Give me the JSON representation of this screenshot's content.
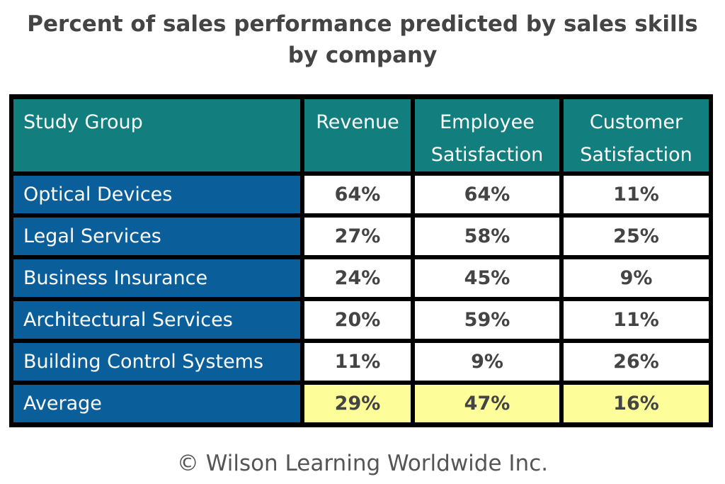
{
  "title_line1": "Percent of sales performance predicted by sales skills",
  "title_line2": "by company",
  "colors": {
    "header": "#137e7e",
    "group": "#0a5f9a",
    "average": "#fdfd9a",
    "border": "#000000"
  },
  "chart_data": {
    "type": "table",
    "columns": [
      "Study Group",
      "Revenue",
      "Employee Satisfaction",
      "Customer Satisfaction"
    ],
    "rows": [
      [
        "Optical Devices",
        "64%",
        "64%",
        "11%"
      ],
      [
        "Legal Services",
        "27%",
        "58%",
        "25%"
      ],
      [
        "Business Insurance",
        "24%",
        "45%",
        "9%"
      ],
      [
        "Architectural Services",
        "20%",
        "59%",
        "11%"
      ],
      [
        "Building Control Systems",
        "11%",
        "9%",
        "26%"
      ],
      [
        "Average",
        "29%",
        "47%",
        "16%"
      ]
    ]
  },
  "footer": "© Wilson Learning Worldwide Inc."
}
